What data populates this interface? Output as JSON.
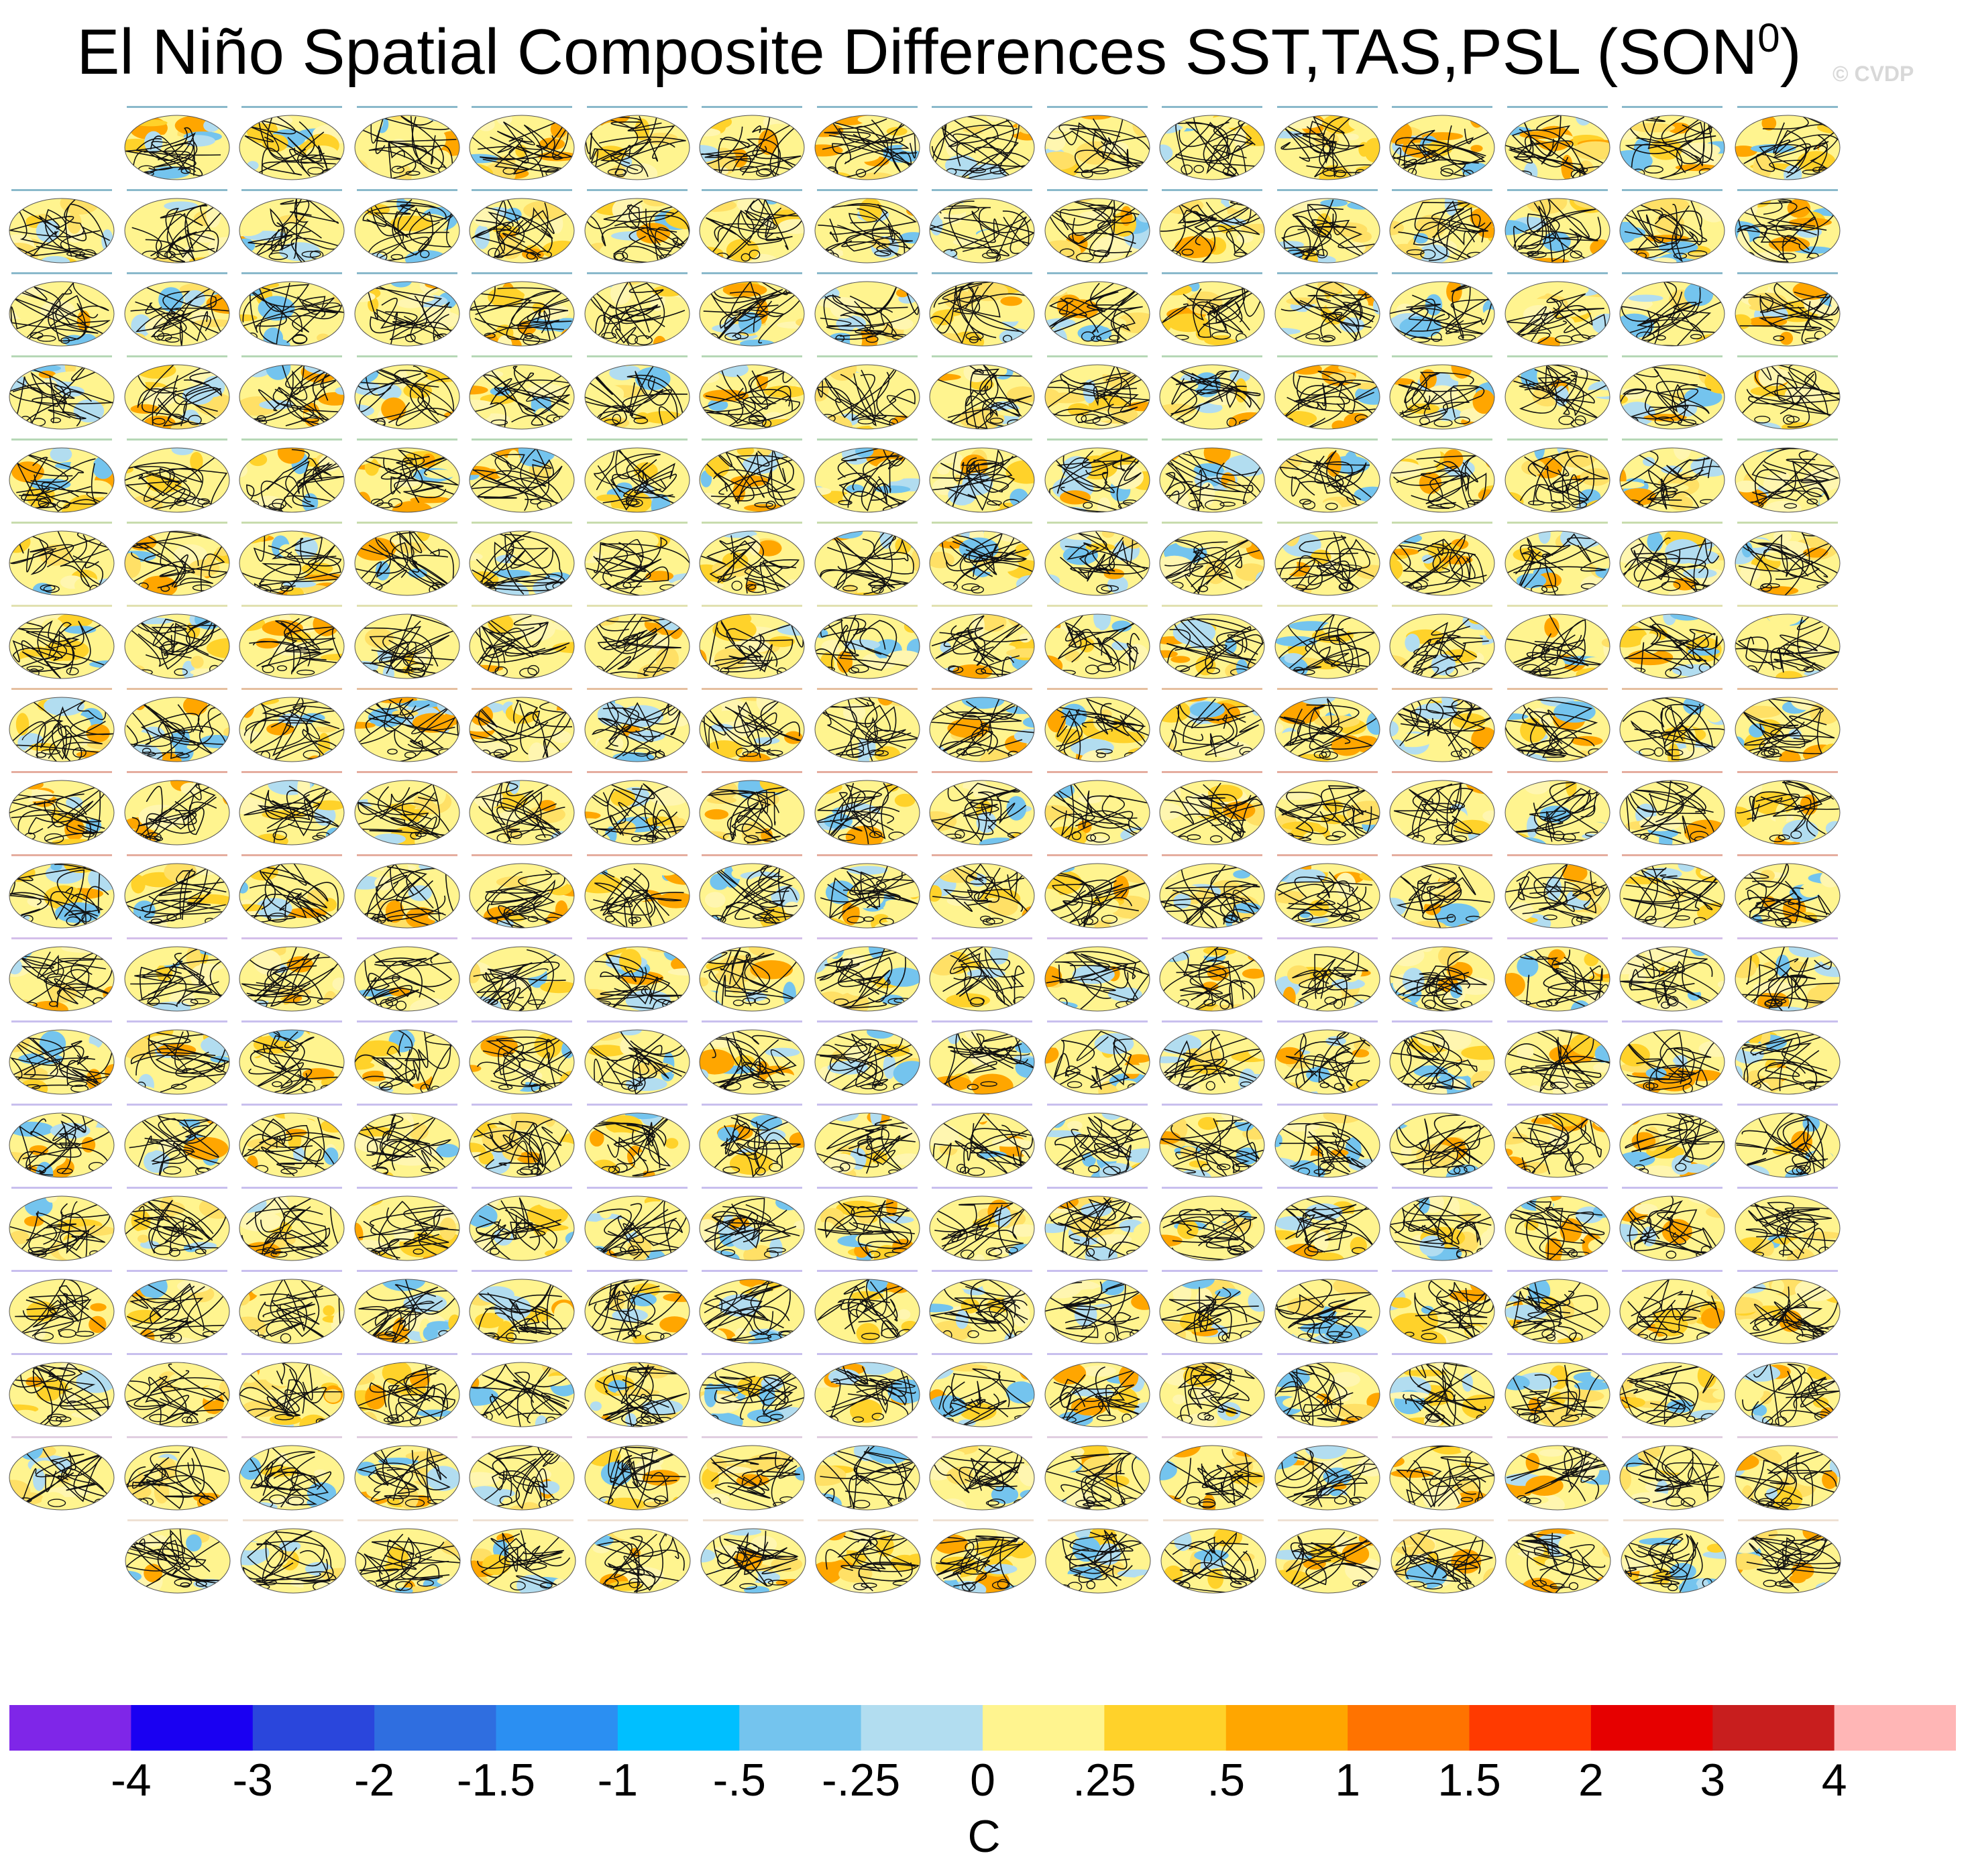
{
  "chart_data": {
    "type": "heatmap",
    "title": "El Niño Spatial Composite Differences SST,TAS,PSL (SON",
    "title_superscript": "0",
    "title_suffix": ")",
    "watermark": "© CVDP",
    "panel_grid": {
      "rows": 18,
      "columns": 16,
      "first_row_panels": 15,
      "last_row_panels": 15
    },
    "panel_label_colors": [
      "#2a7fa0",
      "#2a7fa0",
      "#2a7fa0",
      "#7ab87a",
      "#7ab87a",
      "#9bbf6a",
      "#c8c870",
      "#d08a50",
      "#d06a50",
      "#d06a50",
      "#b08ad8",
      "#9a8ae0",
      "#9a8ae0",
      "#9a8ae0",
      "#9a8ae0",
      "#9a8ae0",
      "#c8a8c8",
      "#e0c8b0"
    ],
    "colorbar": {
      "units": "C",
      "tick_labels": [
        "-4",
        "-3",
        "-2",
        "-1.5",
        "-1",
        "-.5",
        "-.25",
        "0",
        ".25",
        ".5",
        "1",
        "1.5",
        "2",
        "3",
        "4"
      ],
      "colors": [
        "#7f26e8",
        "#1a00f2",
        "#2a46dc",
        "#2f6ee0",
        "#2b8ff2",
        "#00bfff",
        "#74c4ee",
        "#b2ddf0",
        "#fff48f",
        "#ffd22a",
        "#ffa600",
        "#ff7300",
        "#ff3a00",
        "#e60000",
        "#c81e1e",
        "#ffb6b6"
      ]
    },
    "grid": false
  }
}
